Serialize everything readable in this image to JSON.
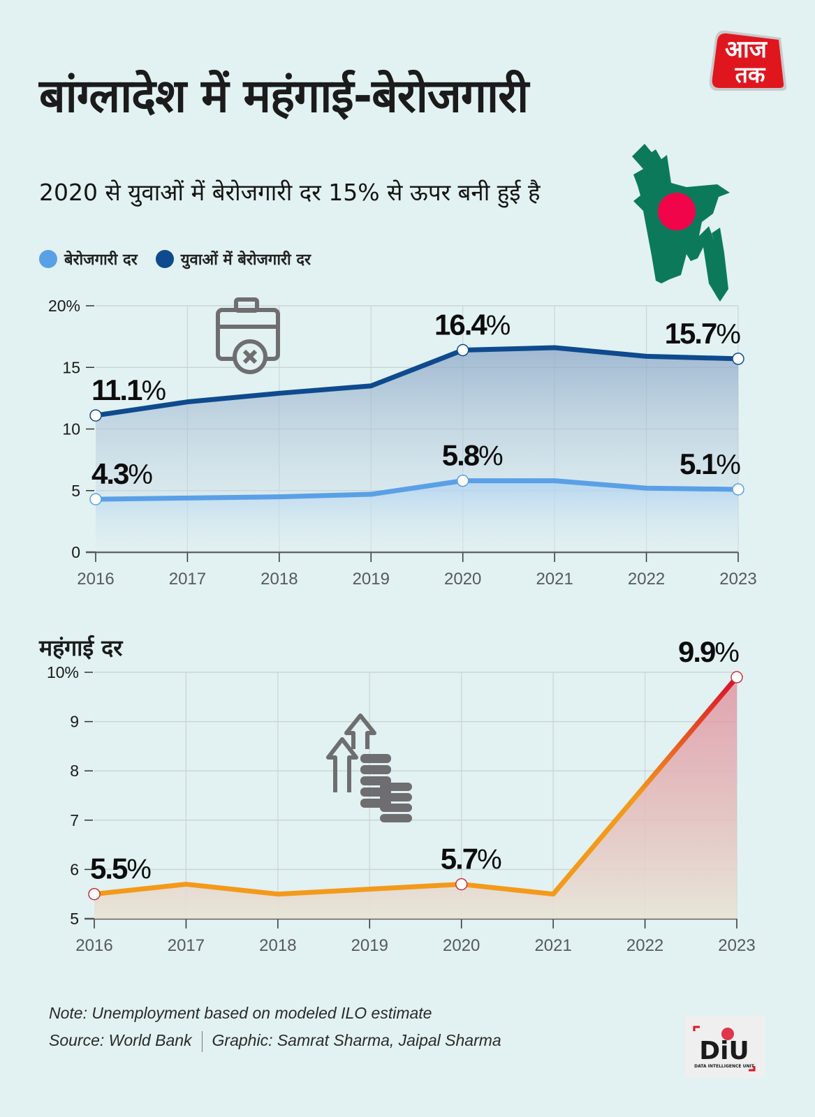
{
  "header": {
    "title": "बांग्लादेश में महंगाई-बेरोजगारी",
    "subtitle": "2020 से युवाओं में बेरोजगारी दर 15% से ऊपर बनी हुई है",
    "brand_logo_text": "आज तक",
    "brand_color": "#e0161f"
  },
  "legend": [
    {
      "label": "बेरोजगारी दर",
      "color": "#5aa0e6"
    },
    {
      "label": "युवाओं में बेरोजगारी दर",
      "color": "#0e4a8e"
    }
  ],
  "inflation_section": {
    "title": "महंगाई दर"
  },
  "chart_data": [
    {
      "type": "line",
      "title": "बेरोजगारी दर / युवाओं में बेरोजगारी दर",
      "xlabel": "",
      "ylabel": "",
      "x": [
        "2016",
        "2017",
        "2018",
        "2019",
        "2020",
        "2021",
        "2022",
        "2023"
      ],
      "yticks": [
        "0",
        "5",
        "10",
        "15",
        "20%"
      ],
      "ytick_values": [
        0,
        5,
        10,
        15,
        20
      ],
      "ylim": [
        0,
        20
      ],
      "grid": true,
      "legend_position": "top-left",
      "series": [
        {
          "name": "युवाओं में बेरोजगारी दर",
          "color": "#0e4a8e",
          "values": [
            11.1,
            12.2,
            12.9,
            13.5,
            16.4,
            16.6,
            15.9,
            15.7
          ],
          "labels": [
            {
              "index": 0,
              "text": "11.1"
            },
            {
              "index": 4,
              "text": "16.4"
            },
            {
              "index": 7,
              "text": "15.7"
            }
          ]
        },
        {
          "name": "बेरोजगारी दर",
          "color": "#5aa0e6",
          "values": [
            4.3,
            4.4,
            4.5,
            4.7,
            5.8,
            5.8,
            5.2,
            5.1
          ],
          "labels": [
            {
              "index": 0,
              "text": "4.3"
            },
            {
              "index": 4,
              "text": "5.8"
            },
            {
              "index": 7,
              "text": "5.1"
            }
          ]
        }
      ],
      "percent_sign": "%"
    },
    {
      "type": "area",
      "title": "महंगाई दर",
      "xlabel": "",
      "ylabel": "",
      "x": [
        "2016",
        "2017",
        "2018",
        "2019",
        "2020",
        "2021",
        "2022",
        "2023"
      ],
      "yticks": [
        "5",
        "6",
        "7",
        "8",
        "9",
        "10%"
      ],
      "ytick_values": [
        5,
        6,
        7,
        8,
        9,
        10
      ],
      "ylim": [
        5,
        10
      ],
      "grid": true,
      "series": [
        {
          "name": "महंगाई दर",
          "color_start": "#f39a1b",
          "color_end": "#d8102e",
          "values": [
            5.5,
            5.7,
            5.5,
            5.6,
            5.7,
            5.5,
            7.7,
            9.9
          ],
          "labels": [
            {
              "index": 0,
              "text": "5.5"
            },
            {
              "index": 4,
              "text": "5.7"
            },
            {
              "index": 7,
              "text": "9.9"
            }
          ]
        }
      ],
      "percent_sign": "%"
    }
  ],
  "icons": {
    "unemployment": "briefcase-x-icon",
    "inflation": "coins-arrow-up-icon",
    "map": "bangladesh-map-flag-icon"
  },
  "footer": {
    "note": "Note: Unemployment based on modeled ILO estimate",
    "source": "Source: World Bank",
    "graphic": "Graphic: Samrat Sharma, Jaipal Sharma",
    "diu_logo_text": "DiU",
    "diu_logo_subtext": "DATA INTELLIGENCE UNIT"
  }
}
